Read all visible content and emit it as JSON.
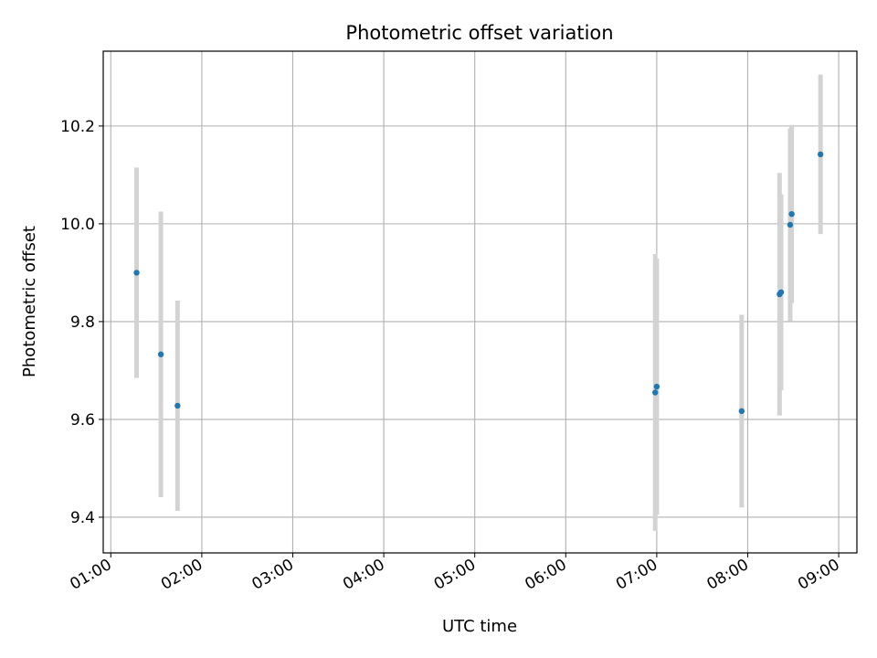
{
  "chart_data": {
    "type": "scatter",
    "title": "Photometric offset variation",
    "xlabel": "UTC time",
    "ylabel": "Photometric offset",
    "x_type": "time",
    "xlim": [
      "00:55",
      "09:12"
    ],
    "ylim": [
      9.327,
      10.353
    ],
    "x_ticks": [
      "01:00",
      "02:00",
      "03:00",
      "04:00",
      "05:00",
      "06:00",
      "07:00",
      "08:00",
      "09:00"
    ],
    "y_ticks": [
      "9.4",
      "9.6",
      "9.8",
      "10.0",
      "10.2"
    ],
    "grid": true,
    "marker_color": "#1f77b4",
    "errorbar_color": "#d3d3d3",
    "points": [
      {
        "x": "01:17",
        "y": 9.9,
        "err": 0.215
      },
      {
        "x": "01:33",
        "y": 9.733,
        "err": 0.292
      },
      {
        "x": "01:44",
        "y": 9.628,
        "err": 0.215
      },
      {
        "x": "06:59",
        "y": 9.655,
        "err": 0.283
      },
      {
        "x": "07:00",
        "y": 9.667,
        "err": 0.262
      },
      {
        "x": "07:56",
        "y": 9.617,
        "err": 0.197
      },
      {
        "x": "08:21",
        "y": 9.856,
        "err": 0.248
      },
      {
        "x": "08:22",
        "y": 9.86,
        "err": 0.2
      },
      {
        "x": "08:28",
        "y": 9.998,
        "err": 0.197
      },
      {
        "x": "08:29",
        "y": 10.02,
        "err": 0.182
      },
      {
        "x": "08:48",
        "y": 10.142,
        "err": 0.163
      }
    ]
  }
}
